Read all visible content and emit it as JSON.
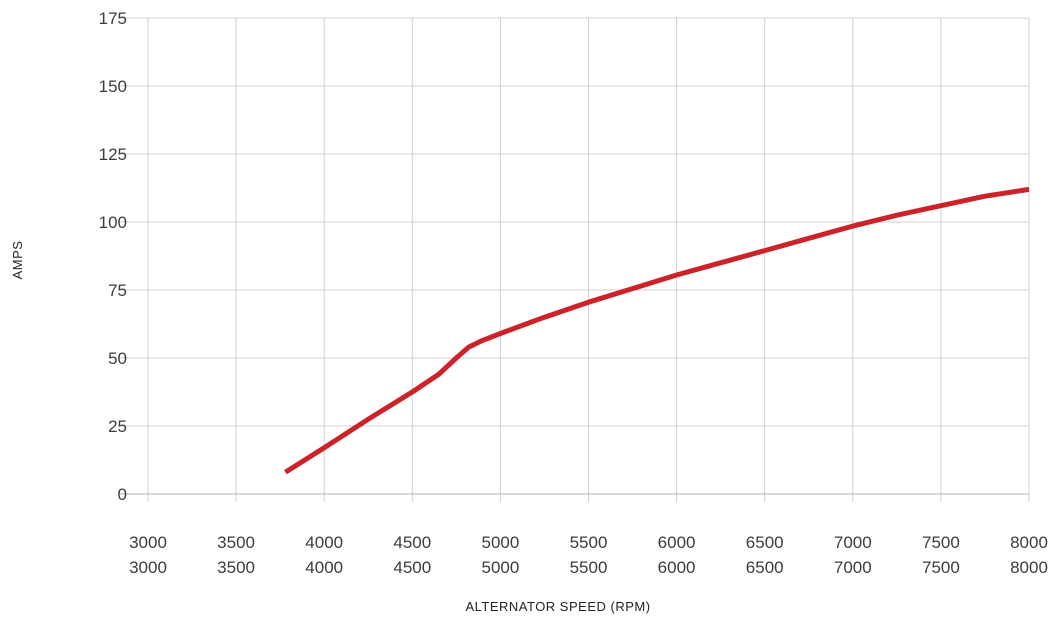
{
  "chart_data": {
    "type": "line",
    "xlabel": "ALTERNATOR SPEED (RPM)",
    "ylabel": "AMPS",
    "xlim": [
      3000,
      8000
    ],
    "ylim": [
      0,
      175
    ],
    "x_ticks": [
      "3000",
      "3500",
      "4000",
      "4500",
      "5000",
      "5500",
      "6000",
      "6500",
      "7000",
      "7500",
      "8000"
    ],
    "x_ticks_secondary": [
      "3000",
      "3500",
      "4000",
      "4500",
      "5000",
      "5500",
      "6000",
      "6500",
      "7000",
      "7500",
      "8000"
    ],
    "y_ticks": [
      "0",
      "25",
      "50",
      "75",
      "100",
      "125",
      "150",
      "175"
    ],
    "grid": true,
    "series": [
      {
        "color": "#cc2229",
        "points": [
          [
            3780,
            8
          ],
          [
            4000,
            17
          ],
          [
            4250,
            27.5
          ],
          [
            4500,
            37.5
          ],
          [
            4650,
            44
          ],
          [
            4750,
            50
          ],
          [
            4820,
            54
          ],
          [
            4900,
            56.5
          ],
          [
            5000,
            59
          ],
          [
            5250,
            65
          ],
          [
            5500,
            70.5
          ],
          [
            5750,
            75.5
          ],
          [
            6000,
            80.5
          ],
          [
            6250,
            85
          ],
          [
            6500,
            89.5
          ],
          [
            6750,
            94
          ],
          [
            7000,
            98.5
          ],
          [
            7250,
            102.5
          ],
          [
            7500,
            106
          ],
          [
            7750,
            109.5
          ],
          [
            8000,
            112
          ]
        ]
      }
    ]
  }
}
